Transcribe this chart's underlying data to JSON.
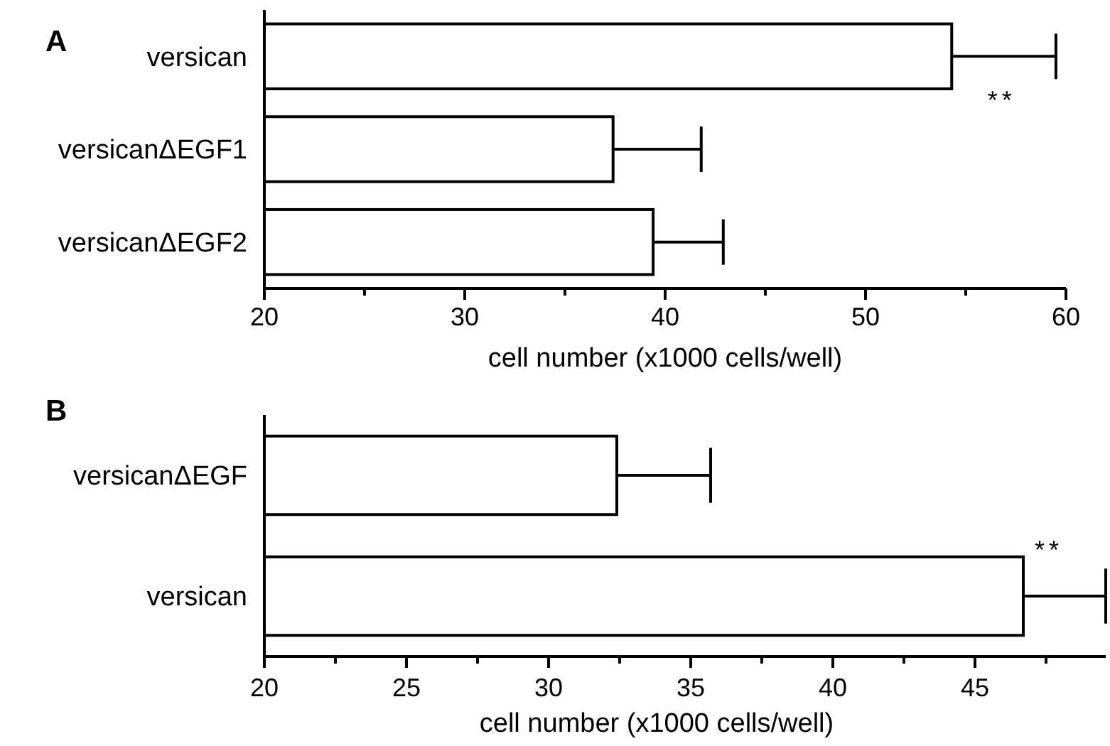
{
  "chart_data": [
    {
      "type": "bar",
      "title": "A",
      "orientation": "horizontal",
      "categories": [
        "versican",
        "versicanΔEGF1",
        "versicanΔEGF2"
      ],
      "values": [
        54.3,
        37.4,
        39.4
      ],
      "errors": [
        [
          54.3,
          59.5
        ],
        [
          37.4,
          41.8
        ],
        [
          39.4,
          42.9
        ]
      ],
      "color": "#ffffff",
      "xlim": [
        20,
        60
      ],
      "xticks": [
        20,
        {
          "value": 25,
          "label": null
        },
        30,
        {
          "value": 35,
          "label": null
        },
        40,
        {
          "value": 45,
          "label": null
        },
        50,
        {
          "value": 55,
          "label": null
        },
        60
      ],
      "xlabel": "cell number (x1000 cells/well)",
      "annotations": [
        {
          "text": "**",
          "x": 56.8,
          "y": "versican"
        }
      ]
    },
    {
      "type": "bar",
      "title": "B",
      "orientation": "horizontal",
      "categories": [
        "versicanΔEGF",
        "versican"
      ],
      "values": [
        32.4,
        46.7
      ],
      "errors": [
        [
          32.4,
          35.7
        ],
        [
          46.7,
          49.6
        ]
      ],
      "color": "#ffffff",
      "xlim": [
        20,
        49.6
      ],
      "xticks": [
        20,
        {
          "value": 22.5,
          "label": null
        },
        25,
        {
          "value": 27.5,
          "label": null
        },
        30,
        {
          "value": 32.5,
          "label": null
        },
        35,
        {
          "value": 37.5,
          "label": null
        },
        40,
        {
          "value": 42.5,
          "label": null
        },
        45,
        {
          "value": 47.5,
          "label": null
        }
      ],
      "xlabel": "cell number (x1000 cells/well)",
      "annotations": [
        {
          "text": "**",
          "x": 47.6,
          "y": "versican"
        }
      ]
    }
  ]
}
